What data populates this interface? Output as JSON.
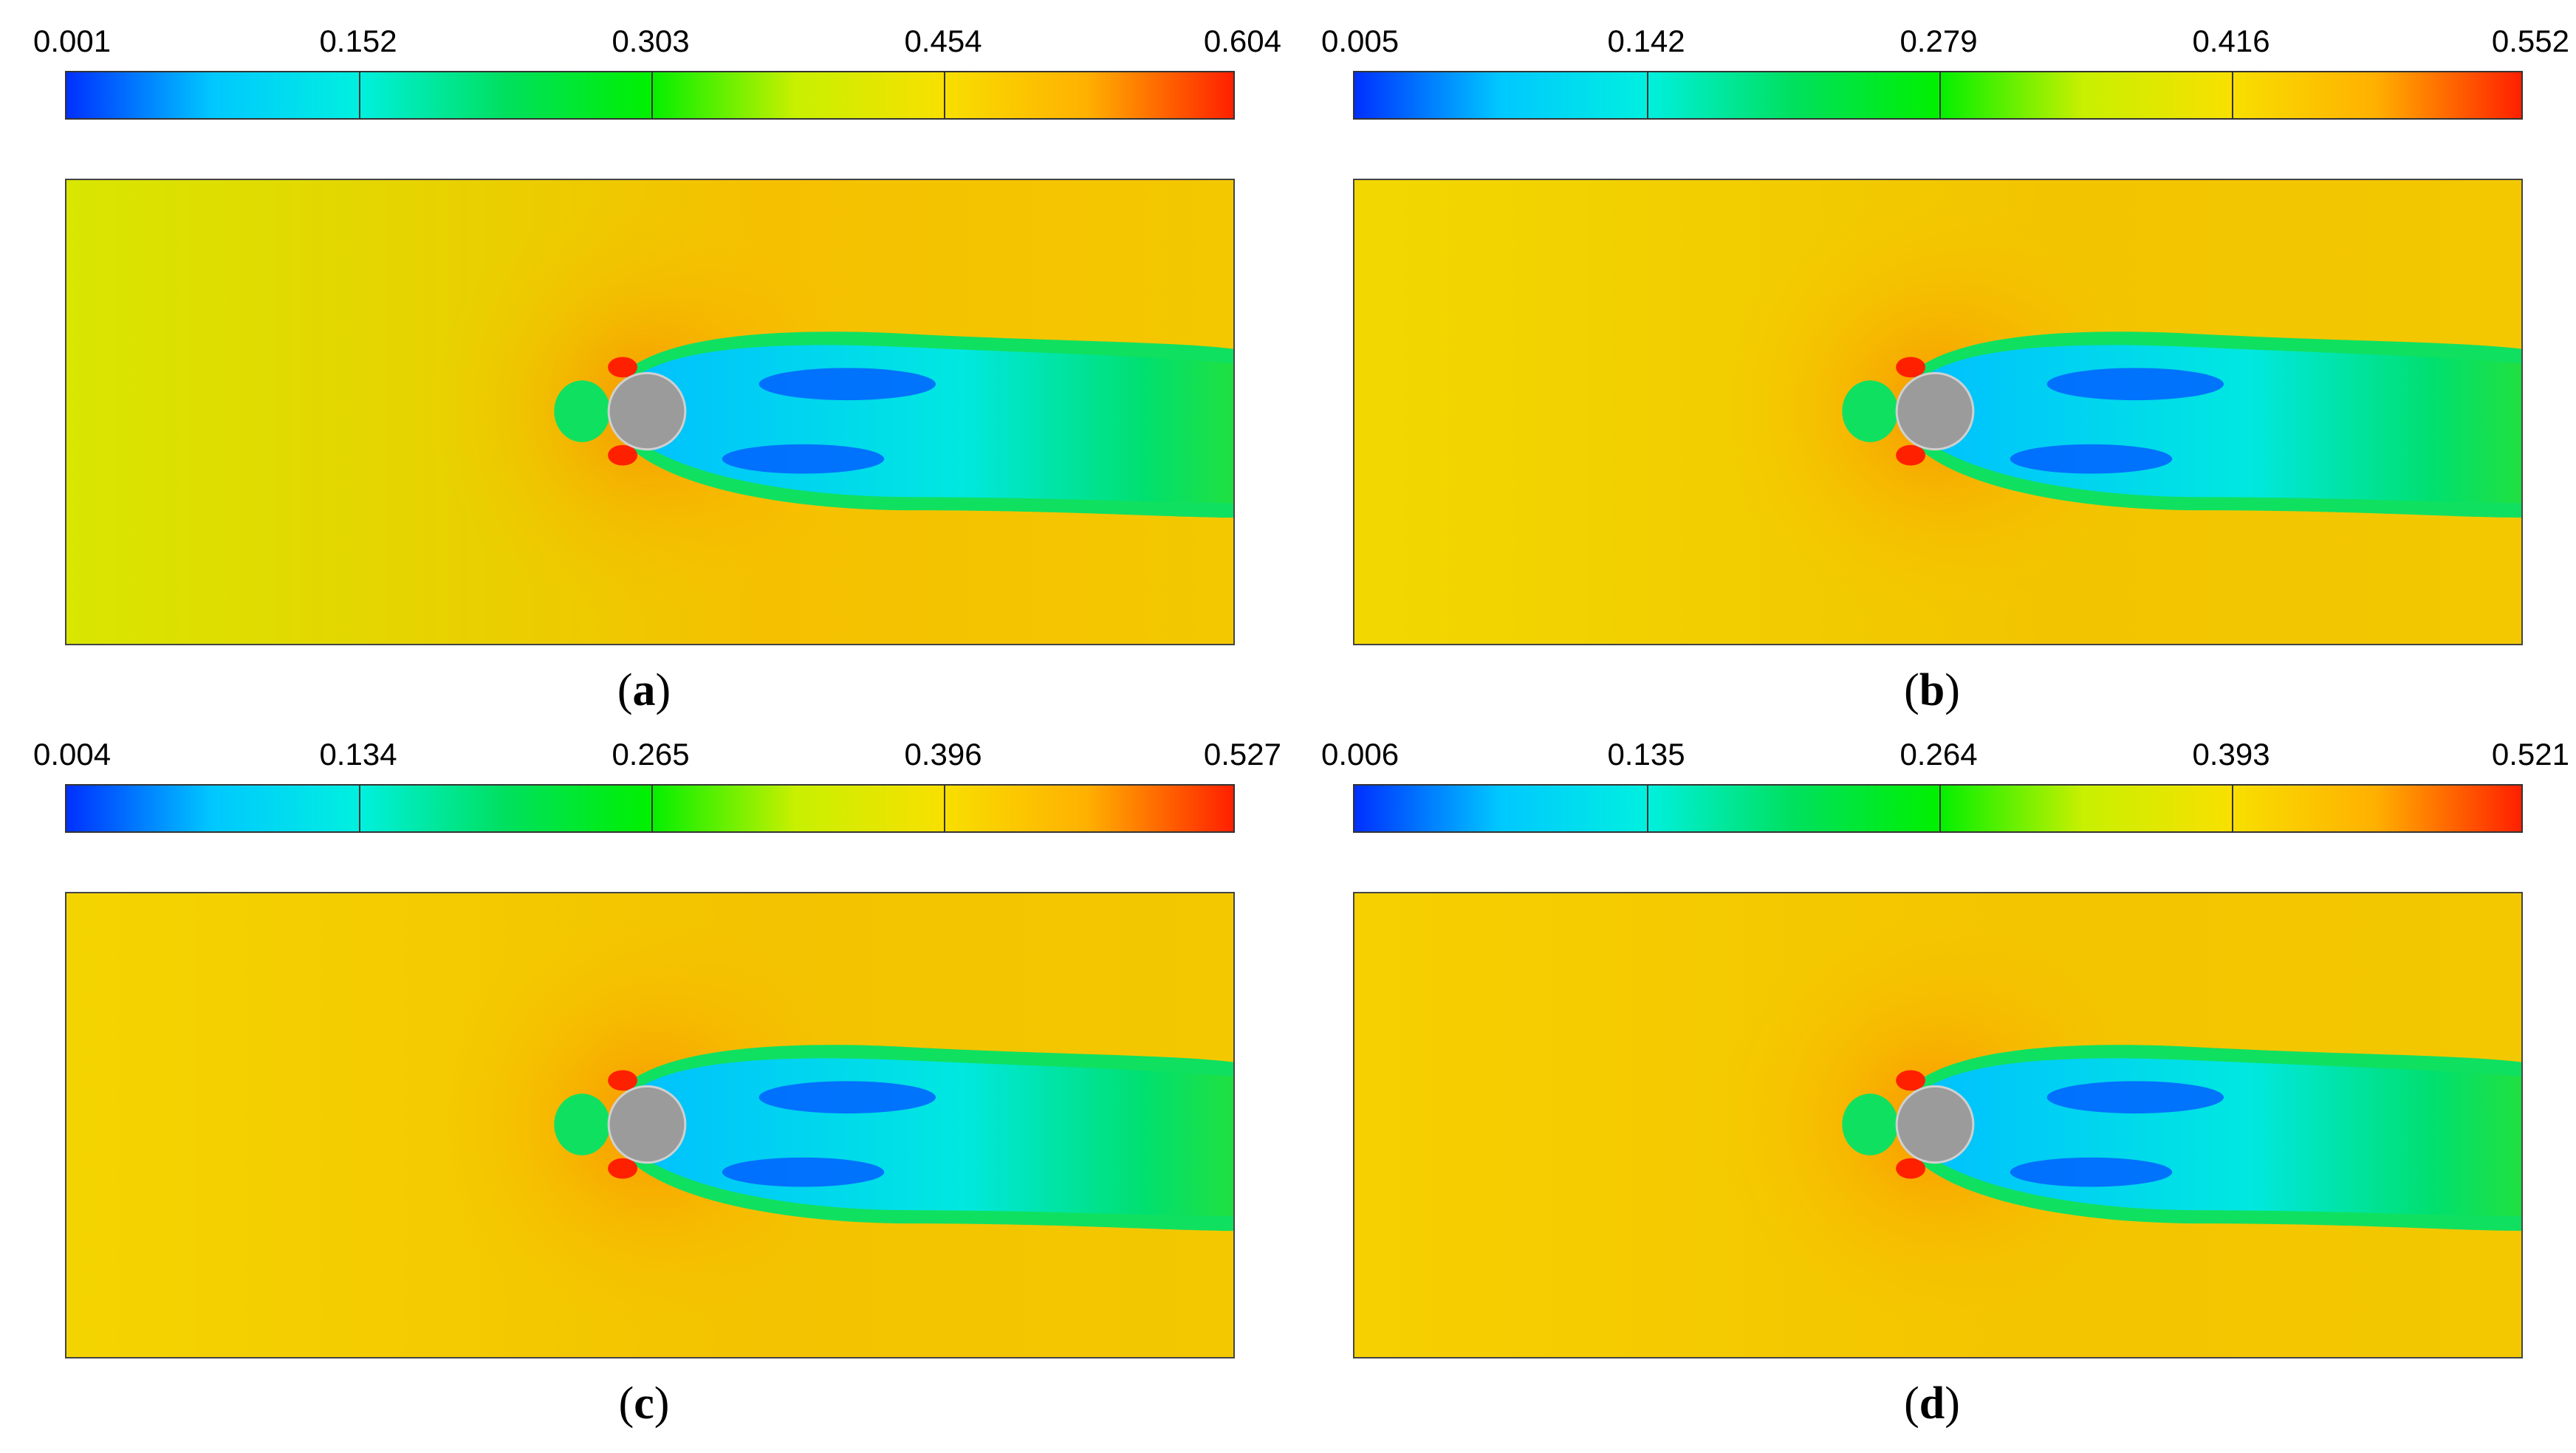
{
  "panels": [
    {
      "id": "a",
      "caption_letter": "a",
      "scale": [
        "0.001",
        "0.152",
        "0.303",
        "0.454",
        "0.604"
      ]
    },
    {
      "id": "b",
      "caption_letter": "b",
      "scale": [
        "0.005",
        "0.142",
        "0.279",
        "0.416",
        "0.552"
      ]
    },
    {
      "id": "c",
      "caption_letter": "c",
      "scale": [
        "0.004",
        "0.134",
        "0.265",
        "0.396",
        "0.527"
      ]
    },
    {
      "id": "d",
      "caption_letter": "d",
      "scale": [
        "0.006",
        "0.135",
        "0.264",
        "0.393",
        "0.521"
      ]
    }
  ],
  "colormap": [
    "#0030ff",
    "#00c8ff",
    "#00f0e0",
    "#00e060",
    "#00f000",
    "#c8f000",
    "#f8e000",
    "#ffb000",
    "#ff2000"
  ],
  "obstacle_color": "#9b9b9b"
}
